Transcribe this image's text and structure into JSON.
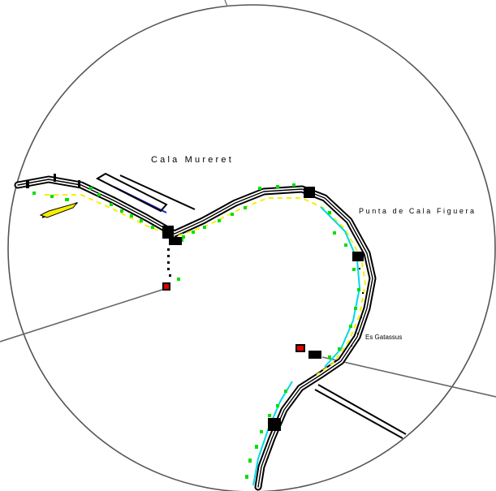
{
  "map": {
    "labels": {
      "cala_mureret": "Cala Mureret",
      "punta_cala_figuera": "Punta de Cala Figuera",
      "es_gatassus": "Es Gatassus"
    },
    "colors": {
      "background": "#ffffff",
      "outline": "#000000",
      "circle": "#555555",
      "leader": "#666666",
      "vegetation": "#00e000",
      "road_center": "#f5f000",
      "water_edge": "#00d8e8",
      "boundary": "#1a1ad0",
      "marker": "#e00000"
    }
  }
}
